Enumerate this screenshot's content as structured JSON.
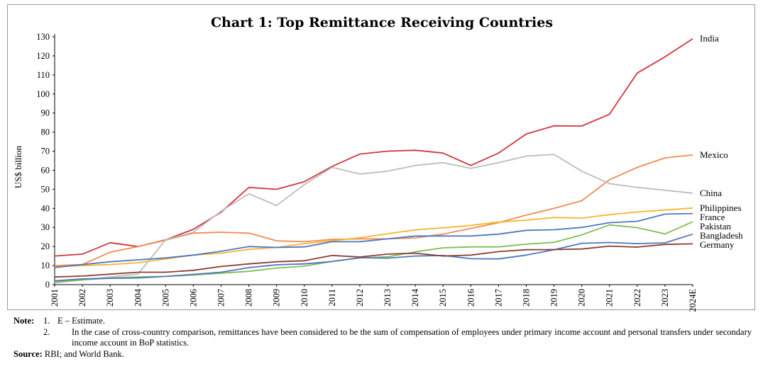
{
  "chart_data": {
    "type": "line",
    "title": "Chart 1: Top Remittance Receiving Countries",
    "xlabel": "",
    "ylabel": "US$ billion",
    "ylim": [
      0,
      130
    ],
    "yticks": [
      0,
      10,
      20,
      30,
      40,
      50,
      60,
      70,
      80,
      90,
      100,
      110,
      120,
      130
    ],
    "categories": [
      "2001",
      "2002",
      "2003",
      "2004",
      "2005",
      "2006",
      "2007",
      "2008",
      "2009",
      "2010",
      "2011",
      "2012",
      "2013",
      "2014",
      "2015",
      "2016",
      "2017",
      "2018",
      "2019",
      "2020",
      "2021",
      "2022",
      "2023",
      "2024E"
    ],
    "series": [
      {
        "name": "India",
        "color": "#d0383c",
        "values": [
          15,
          16,
          22,
          20,
          23.5,
          29,
          38,
          51,
          50,
          54,
          62,
          68.5,
          70,
          70.5,
          69,
          62.5,
          69,
          79,
          83.3,
          83.2,
          89.4,
          111,
          119.5,
          129
        ]
      },
      {
        "name": "Mexico",
        "color": "#f28a4e",
        "values": [
          10,
          10.5,
          17,
          20,
          23.3,
          27,
          27.5,
          27,
          23,
          22.5,
          23.7,
          24,
          24,
          24.5,
          26.5,
          29.5,
          32.5,
          36.5,
          40,
          44,
          55,
          61.5,
          66.5,
          68
        ]
      },
      {
        "name": "China",
        "color": "#bdbdbd",
        "values": [
          1,
          2.5,
          4,
          5.5,
          23.5,
          27.5,
          38.5,
          47.7,
          41.5,
          52.5,
          61.5,
          58,
          59.5,
          62.5,
          64,
          61,
          64,
          67.4,
          68.3,
          59.5,
          53,
          51,
          49.5,
          48
        ]
      },
      {
        "name": "Philippines",
        "color": "#f7b52e",
        "values": [
          9.5,
          10,
          10.5,
          11.5,
          13.5,
          15.5,
          16.5,
          18.5,
          19.5,
          21.5,
          23,
          24.6,
          26.7,
          28.7,
          29.8,
          31.1,
          32.8,
          33.8,
          35.2,
          34.9,
          36.7,
          38.1,
          39.1,
          40.2
        ]
      },
      {
        "name": "France",
        "color": "#4e77c4",
        "values": [
          9,
          10.5,
          12,
          13,
          14,
          15.5,
          17.5,
          20,
          19.5,
          19.8,
          22.5,
          22.5,
          24,
          25.5,
          25.5,
          25.5,
          26.5,
          28.5,
          28.8,
          30,
          32.5,
          33.2,
          37,
          37.3
        ]
      },
      {
        "name": "Pakistan",
        "color": "#7fbd52",
        "values": [
          1.5,
          2.5,
          3.5,
          4,
          4.3,
          5,
          6,
          7,
          8.7,
          9.7,
          12.2,
          14,
          14.6,
          17.2,
          19.3,
          19.8,
          19.8,
          21.2,
          22.2,
          26.1,
          31.3,
          29.9,
          26.6,
          33
        ]
      },
      {
        "name": "Bangladesh",
        "color": "#4f76bf",
        "values": [
          2,
          3,
          3.3,
          3.5,
          4.3,
          5.4,
          6.5,
          8.9,
          10.4,
          10.9,
          12.1,
          14.1,
          13.9,
          15,
          15.3,
          13.6,
          13.5,
          15.5,
          18.3,
          21.7,
          22.1,
          21.5,
          21.9,
          26.5
        ]
      },
      {
        "name": "Germany",
        "color": "#8c3d33",
        "values": [
          4,
          4.5,
          5.5,
          6.5,
          6.5,
          7.5,
          9.5,
          10.9,
          12,
          12.5,
          15.3,
          14.5,
          16,
          16.5,
          15,
          15.5,
          17.3,
          18.3,
          18.4,
          18.7,
          20.2,
          19.7,
          21.1,
          21.4
        ]
      }
    ]
  },
  "notes": {
    "label": "Note:",
    "items": [
      {
        "num": "1.",
        "text": "E – Estimate."
      },
      {
        "num": "2.",
        "text": "In the case of cross-country comparison, remittances have been considered to be the sum of compensation of employees under primary income account and personal transfers under secondary income account in BoP statistics."
      }
    ],
    "source_label": "Source:",
    "source_text": "RBI; and World Bank."
  }
}
